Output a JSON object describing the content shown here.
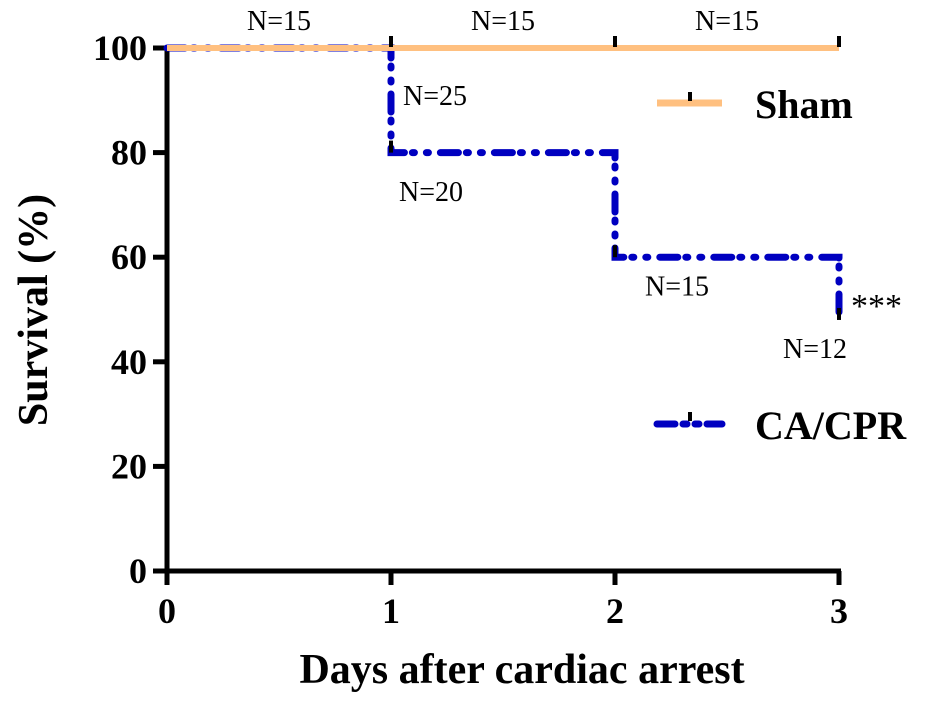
{
  "chart_data": {
    "type": "line",
    "subtype": "kaplan-meier step",
    "xlabel": "Days after cardiac arrest",
    "ylabel": "Survival (%)",
    "xlim": [
      0,
      3
    ],
    "ylim": [
      0,
      100
    ],
    "x_ticks": [
      "0",
      "1",
      "2",
      "3"
    ],
    "y_ticks": [
      "0",
      "20",
      "40",
      "60",
      "80",
      "100"
    ],
    "grid": false,
    "legend_position": "right",
    "series": [
      {
        "name": "Sham",
        "color": "#FFC080",
        "line_style": "solid",
        "steps": [
          {
            "x": 0,
            "y": 100
          },
          {
            "x": 3,
            "y": 100
          }
        ],
        "censor_x": [
          1,
          2,
          3
        ]
      },
      {
        "name": "CA/CPR",
        "color": "#0000C0",
        "line_style": "dash-dot-dot",
        "steps": [
          {
            "x": 0,
            "y": 100
          },
          {
            "x": 1,
            "y": 80
          },
          {
            "x": 2,
            "y": 60
          },
          {
            "x": 3,
            "y": 48
          }
        ],
        "censor_x": [
          1,
          2,
          3
        ]
      }
    ],
    "annotations": {
      "sham_n": [
        {
          "text": "N=15",
          "x": 0.5
        },
        {
          "text": "N=15",
          "x": 1.5
        },
        {
          "text": "N=15",
          "x": 2.5
        }
      ],
      "cpr_n": [
        {
          "text": "N=25",
          "x": 1,
          "y": 91
        },
        {
          "text": "N=20",
          "x": 1,
          "y": 73
        },
        {
          "text": "N=15",
          "x": 2,
          "y": 55
        },
        {
          "text": "N=12",
          "x": 3,
          "y": 43
        }
      ],
      "significance": "***"
    }
  }
}
